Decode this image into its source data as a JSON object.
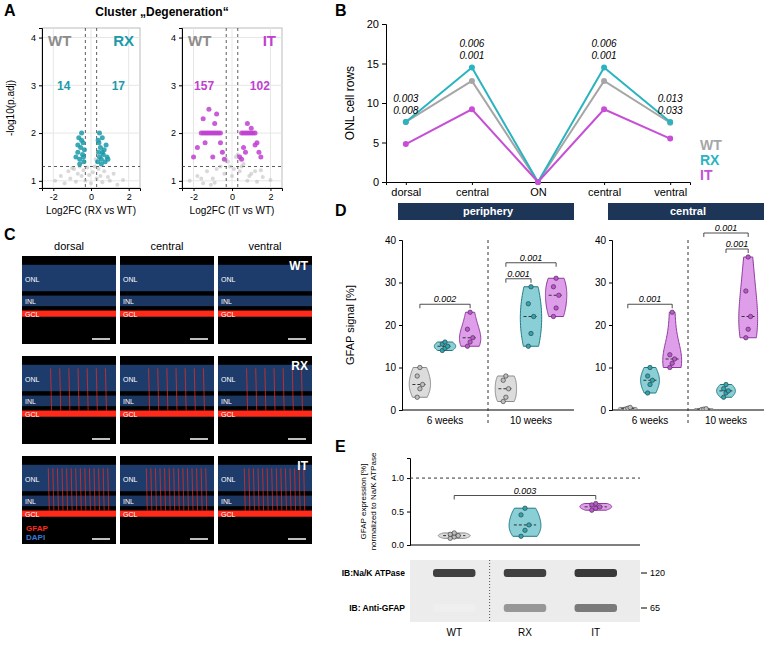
{
  "chart_data": [
    {
      "type": "scatter",
      "panel_label": "A",
      "title": "Cluster „Degeneration“",
      "ylabel": "-log10(p.adj)",
      "grid": true,
      "subplots": [
        {
          "xlabel": "Log2FC (RX vs WT)",
          "xlim": [
            -2.6,
            2.6
          ],
          "xticks": [
            -2,
            0,
            2
          ],
          "ylim": [
            0.85,
            4.2
          ],
          "yticks": [
            1,
            2,
            3,
            4
          ],
          "vlines": [
            -0.3,
            0.3
          ],
          "hline": 1.3,
          "corner_labels": [
            {
              "text": "WT",
              "color": "#8c8c8c"
            },
            {
              "text": "RX",
              "color": "#1b9aaa"
            }
          ],
          "counts": [
            14,
            17
          ],
          "background": {
            "color": "#b3b3b3",
            "x": [
              -1.9,
              -1.6,
              -1.4,
              -1.2,
              -1.1,
              -0.9,
              -0.8,
              -0.7,
              -0.6,
              -0.5,
              -0.4,
              -0.3,
              -0.2,
              -0.1,
              0,
              0.1,
              0.2,
              0.3,
              0.4,
              0.5,
              0.6,
              0.7,
              0.9,
              1.0,
              1.2,
              1.4,
              1.7,
              -1.0,
              -0.35,
              0.25
            ],
            "y": [
              1.0,
              1.1,
              0.95,
              1.2,
              1.05,
              1.25,
              0.98,
              1.15,
              1.3,
              1.1,
              1.22,
              1.0,
              1.28,
              1.12,
              0.95,
              1.18,
              1.3,
              1.05,
              1.25,
              1.1,
              0.97,
              1.2,
              1.08,
              1.0,
              1.15,
              0.92,
              1.02,
              1.27,
              1.4,
              1.45
            ]
          },
          "highlighted": {
            "color": "#1b9aaa",
            "x": [
              -0.8,
              -0.7,
              -0.65,
              -0.6,
              -0.55,
              -0.5,
              -0.45,
              -0.42,
              -0.38,
              -0.35,
              -0.6,
              -0.5,
              -0.4,
              -0.7,
              0.35,
              0.4,
              0.42,
              0.45,
              0.5,
              0.55,
              0.6,
              0.65,
              0.7,
              0.75,
              0.8,
              0.85,
              0.45,
              0.55,
              0.6,
              0.38,
              0.9
            ],
            "y": [
              1.5,
              1.6,
              1.9,
              1.45,
              1.7,
              2.0,
              1.55,
              1.8,
              1.4,
              1.65,
              1.35,
              1.85,
              1.5,
              1.75,
              1.4,
              1.6,
              1.8,
              1.5,
              1.7,
              1.45,
              1.9,
              1.55,
              1.65,
              1.4,
              1.75,
              1.5,
              2.0,
              1.35,
              1.6,
              1.85,
              1.45
            ]
          }
        },
        {
          "xlabel": "Log2FC (IT vs WT)",
          "xlim": [
            -2.6,
            2.6
          ],
          "xticks": [
            -2,
            0,
            2
          ],
          "ylim": [
            0.85,
            4.2
          ],
          "yticks": [
            1,
            2,
            3,
            4
          ],
          "vlines": [
            -0.3,
            0.3
          ],
          "hline": 1.3,
          "corner_labels": [
            {
              "text": "WT",
              "color": "#8c8c8c"
            },
            {
              "text": "IT",
              "color": "#c040d0"
            }
          ],
          "counts": [
            157,
            102
          ],
          "background": {
            "color": "#b3b3b3",
            "x": [
              -2.2,
              -1.8,
              -1.5,
              -1.3,
              -1.0,
              -0.8,
              -0.6,
              -0.4,
              -0.2,
              0,
              0.2,
              0.4,
              0.6,
              0.8,
              1.0,
              1.3,
              1.6,
              2.0,
              -1.1,
              -0.5,
              0.1,
              0.5,
              1.2,
              -1.6,
              -0.3,
              0.3,
              0.9,
              -0.9,
              1.5,
              -0.1
            ],
            "y": [
              1.0,
              1.1,
              0.95,
              1.2,
              1.05,
              1.25,
              1.3,
              1.15,
              1.4,
              1.1,
              1.5,
              1.2,
              1.35,
              1.0,
              1.15,
              0.98,
              1.08,
              1.02,
              0.92,
              1.6,
              1.25,
              1.3,
              1.2,
              1.05,
              1.45,
              1.55,
              1.1,
              0.96,
              1.22,
              1.3
            ]
          },
          "highlighted": {
            "color": "#c040d0",
            "x": [
              -2.0,
              -1.8,
              -1.6,
              -1.5,
              -1.4,
              -1.3,
              -1.2,
              -1.1,
              -1.0,
              -0.9,
              -0.8,
              -0.7,
              -0.6,
              -0.5,
              -0.4,
              -1.5,
              -1.2,
              -0.9,
              -0.6,
              -1.0,
              -0.8,
              -1.4,
              0.4,
              0.5,
              0.6,
              0.7,
              0.8,
              0.9,
              1.0,
              1.1,
              1.2,
              1.3,
              1.4,
              1.5,
              0.6,
              0.8,
              1.0,
              0.5,
              0.7,
              1.2
            ],
            "y": [
              1.5,
              1.7,
              2.0,
              2.0,
              2.0,
              2.0,
              2.0,
              2.0,
              2.0,
              2.0,
              2.0,
              2.0,
              2.0,
              1.6,
              1.45,
              2.3,
              2.5,
              2.2,
              1.8,
              1.5,
              2.4,
              1.8,
              1.5,
              2.0,
              2.0,
              2.0,
              2.0,
              2.0,
              2.0,
              2.0,
              2.0,
              1.8,
              1.6,
              1.5,
              1.7,
              2.2,
              2.1,
              1.45,
              1.6,
              1.75
            ]
          }
        }
      ]
    },
    {
      "type": "line",
      "panel_label": "B",
      "ylabel": "ONL cell rows",
      "categories": [
        "dorsal",
        "central",
        "ON",
        "central",
        "ventral"
      ],
      "ylim": [
        0,
        20
      ],
      "yticks": [
        0,
        5,
        10,
        15,
        20
      ],
      "legend": "right",
      "marker": "circle",
      "series": [
        {
          "name": "WT",
          "color": "#a6a6a6",
          "values": [
            7.6,
            12.8,
            0,
            12.8,
            7.5
          ]
        },
        {
          "name": "RX",
          "color": "#2bb3c0",
          "values": [
            7.6,
            14.5,
            0,
            14.5,
            7.6
          ]
        },
        {
          "name": "IT",
          "color": "#c64fd6",
          "values": [
            4.8,
            9.2,
            0,
            9.2,
            5.5
          ]
        }
      ],
      "p_values": [
        [
          0.003,
          0.008
        ],
        [
          0.006,
          0.001
        ],
        null,
        [
          0.006,
          0.001
        ],
        [
          0.013,
          0.033
        ]
      ]
    },
    {
      "type": "image",
      "panel_label": "C",
      "columns": [
        "dorsal",
        "central",
        "ventral"
      ],
      "rows": [
        "WT",
        "RX",
        "IT"
      ],
      "layers": [
        "ONL",
        "INL",
        "GCL"
      ],
      "channels": [
        {
          "name": "GFAP",
          "color": "#ff2a1a"
        },
        {
          "name": "DAPI",
          "color": "#3a78d8"
        }
      ]
    },
    {
      "type": "violin",
      "panel_label": "D",
      "ylabel": "GFAP signal [%]",
      "ylim": [
        0,
        40
      ],
      "yticks": [
        0,
        10,
        20,
        30,
        40
      ],
      "colors": [
        "#bfbfbf",
        "#2aa7b5",
        "#c44fd9"
      ],
      "facets": [
        {
          "title": "periphery",
          "groups": [
            {
              "label": "6 weeks",
              "values": [
                [
                  3,
                  5,
                  6,
                  8,
                  10
                ],
                [
                  14,
                  14.5,
                  15,
                  15.5,
                  16
                ],
                [
                  15,
                  16,
                  17,
                  19,
                  23
                ]
              ],
              "comparisons": [
                {
                  "pair": [
                    0,
                    2
                  ],
                  "p": 0.002
                }
              ]
            },
            {
              "label": "10 weeks",
              "values": [
                [
                  2,
                  3,
                  5,
                  7,
                  8
                ],
                [
                  15,
                  18,
                  22,
                  25,
                  29
                ],
                [
                  22,
                  24,
                  27,
                  29,
                  31
                ]
              ],
              "comparisons": [
                {
                  "pair": [
                    0,
                    1
                  ],
                  "p": 0.001
                },
                {
                  "pair": [
                    0,
                    2
                  ],
                  "p": 0.001
                }
              ]
            }
          ]
        },
        {
          "title": "central",
          "groups": [
            {
              "label": "6 weeks",
              "values": [
                [
                  0.2,
                  0.4,
                  0.6
                ],
                [
                  4,
                  6,
                  7,
                  8,
                  10
                ],
                [
                  10,
                  11,
                  12,
                  13,
                  23
                ]
              ],
              "comparisons": [
                {
                  "pair": [
                    0,
                    2
                  ],
                  "p": 0.001
                }
              ]
            },
            {
              "label": "10 weeks",
              "values": [
                [
                  0.1,
                  0.2,
                  0.3
                ],
                [
                  3,
                  4,
                  4.5,
                  5,
                  6
                ],
                [
                  17,
                  19,
                  22,
                  28,
                  36
                ]
              ],
              "comparisons": [
                {
                  "pair": [
                    1,
                    2
                  ],
                  "p": 0.001
                },
                {
                  "pair": [
                    0,
                    2
                  ],
                  "p": 0.001
                }
              ]
            }
          ]
        }
      ]
    },
    {
      "type": "violin",
      "panel_label": "E",
      "ylabel": [
        "GFAP expression [%]",
        "normalized to Na/K ATPase"
      ],
      "categories": [
        "WT",
        "RX",
        "IT"
      ],
      "colors": [
        "#bfbfbf",
        "#2aa7b5",
        "#c44fd9"
      ],
      "values": [
        [
          0.1,
          0.12,
          0.14,
          0.16,
          0.18
        ],
        [
          0.13,
          0.22,
          0.3,
          0.45,
          0.55
        ],
        [
          0.52,
          0.55,
          0.57,
          0.6,
          0.62
        ]
      ],
      "ylim": [
        0,
        1.3
      ],
      "yticks": [
        {
          "value": 0,
          "label": "0.0"
        },
        0.5,
        {
          "value": 1,
          "label": "1.0"
        }
      ],
      "hline": 1,
      "comparisons": [
        {
          "pair": [
            0,
            2
          ],
          "p": 0.003
        }
      ],
      "blot": {
        "rows": [
          {
            "label": "IB:Na/K ATPase",
            "size": 120,
            "intensity": [
              0.8,
              0.8,
              0.82
            ]
          },
          {
            "label": "IB: Anti-GFAP",
            "size": 65,
            "intensity": [
              0.12,
              0.5,
              0.6
            ]
          }
        ]
      }
    }
  ]
}
